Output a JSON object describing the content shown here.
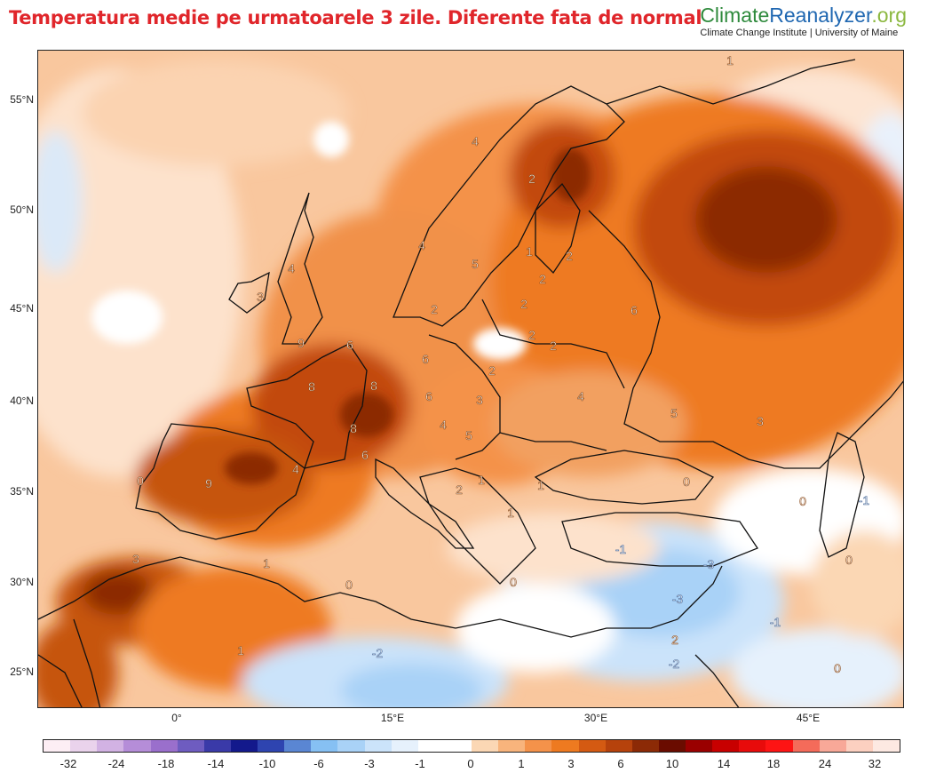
{
  "title": "Temperatura medie pe urmatoarele 3 zile. Diferente fata de normal",
  "brand": {
    "name_part1": "Climate",
    "name_part2": "Reanalyzer",
    "name_part3": ".org",
    "subtitle": "Climate Change Institute | University of Maine",
    "colors": {
      "part1": "#2e8a3c",
      "part2": "#1f67b1",
      "part3": "#8cb840"
    }
  },
  "map": {
    "latitude_labels": [
      "55°N",
      "50°N",
      "45°N",
      "40°N",
      "35°N",
      "30°N",
      "25°N"
    ],
    "longitude_labels": [
      "0°",
      "15°E",
      "30°E",
      "45°E"
    ],
    "anomaly_labels": [
      {
        "value": "1"
      },
      {
        "value": "4"
      },
      {
        "value": "2"
      },
      {
        "value": "4"
      },
      {
        "value": "4"
      },
      {
        "value": "5"
      },
      {
        "value": "1"
      },
      {
        "value": "2"
      },
      {
        "value": "2"
      },
      {
        "value": "2"
      },
      {
        "value": "3"
      },
      {
        "value": "2"
      },
      {
        "value": "6"
      },
      {
        "value": "9"
      },
      {
        "value": "6"
      },
      {
        "value": "2"
      },
      {
        "value": "2"
      },
      {
        "value": "6"
      },
      {
        "value": "2"
      },
      {
        "value": "8"
      },
      {
        "value": "8"
      },
      {
        "value": "6"
      },
      {
        "value": "3"
      },
      {
        "value": "4"
      },
      {
        "value": "5"
      },
      {
        "value": "4"
      },
      {
        "value": "4"
      },
      {
        "value": "5"
      },
      {
        "value": "8"
      },
      {
        "value": "6"
      },
      {
        "value": "0"
      },
      {
        "value": "9"
      },
      {
        "value": "2"
      },
      {
        "value": "1"
      },
      {
        "value": "1"
      },
      {
        "value": "1"
      },
      {
        "value": "0"
      },
      {
        "value": "3"
      },
      {
        "value": "0"
      },
      {
        "value": "-1"
      },
      {
        "value": "3"
      },
      {
        "value": "1"
      },
      {
        "value": "-1"
      },
      {
        "value": "-3"
      },
      {
        "value": "0"
      },
      {
        "value": "0"
      },
      {
        "value": "0"
      },
      {
        "value": "-3"
      },
      {
        "value": "-1"
      },
      {
        "value": "1"
      },
      {
        "value": "-2"
      },
      {
        "value": "2"
      },
      {
        "value": "-2"
      },
      {
        "value": "0"
      }
    ]
  },
  "colorbar": {
    "tick_labels": [
      "-32",
      "-24",
      "-18",
      "-14",
      "-10",
      "-6",
      "-3",
      "-1",
      "0",
      "1",
      "3",
      "6",
      "10",
      "14",
      "18",
      "24",
      "32"
    ],
    "colors": [
      "#fdeef4",
      "#ead3ec",
      "#d2b2e3",
      "#b58dd8",
      "#9a6fcc",
      "#6e5cc0",
      "#3a3aa8",
      "#13198c",
      "#2e44b0",
      "#5a86d3",
      "#86c0f3",
      "#a9d2f7",
      "#cbe3fa",
      "#e6f1fc",
      "#ffffff",
      "#ffffff",
      "#fbd7b4",
      "#f8b47c",
      "#f4924a",
      "#ee7a20",
      "#d45a12",
      "#b6420c",
      "#8c2a06",
      "#6a0c00",
      "#9a0000",
      "#c80000",
      "#e80b0b",
      "#fe1414",
      "#f46b5a",
      "#f8a898",
      "#fcd0c0",
      "#fde9e2"
    ]
  }
}
